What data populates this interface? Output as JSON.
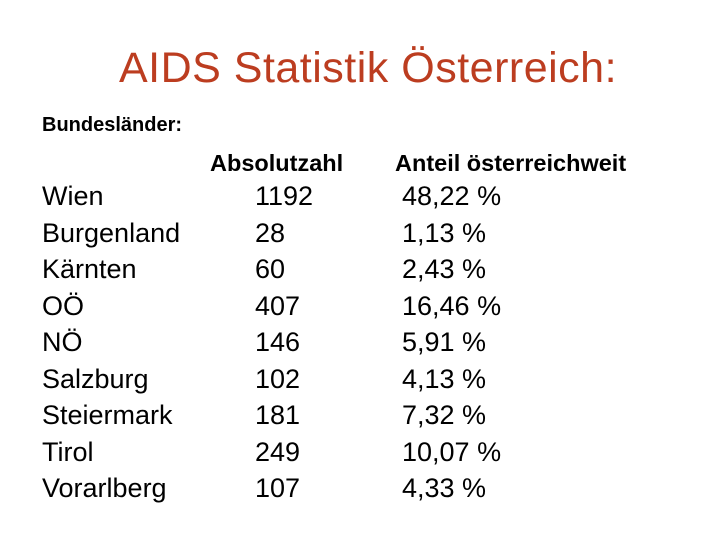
{
  "slide": {
    "title": "AIDS Statistik Österreich:",
    "title_color": "#BC3D20",
    "text_color": "#000000",
    "background_color": "#FFFFFF",
    "section_label": "Bundesländer:",
    "columns": {
      "absolute": "Absolutzahl",
      "share": "Anteil österreichweit"
    },
    "rows": [
      {
        "name": "Wien",
        "absolute": "1192",
        "share": "48,22 %"
      },
      {
        "name": "Burgenland",
        "absolute": "28",
        "share": "1,13 %"
      },
      {
        "name": "Kärnten",
        "absolute": "60",
        "share": "2,43 %"
      },
      {
        "name": "OÖ",
        "absolute": "407",
        "share": "16,46 %"
      },
      {
        "name": "NÖ",
        "absolute": "146",
        "share": "5,91 %"
      },
      {
        "name": "Salzburg",
        "absolute": "102",
        "share": "4,13 %"
      },
      {
        "name": "Steiermark",
        "absolute": "181",
        "share": "7,32 %"
      },
      {
        "name": "Tirol",
        "absolute": "249",
        "share": "10,07 %"
      },
      {
        "name": "Vorarlberg",
        "absolute": "107",
        "share": "4,33 %"
      }
    ]
  }
}
